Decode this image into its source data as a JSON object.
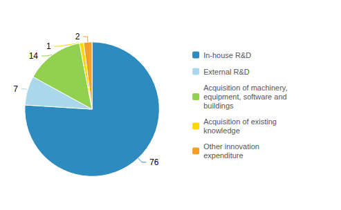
{
  "chart_data": {
    "type": "pie",
    "categories": [
      "In-house R&D",
      "External R&D",
      "Acquisition of machinery,\nequipment, software and\nbuildings",
      "Acquisition of existing\nknowledge",
      "Other innovation\nexpenditure"
    ],
    "values": [
      76,
      7,
      14,
      1,
      2
    ],
    "colors": [
      "#2e8bbf",
      "#a8d8ea",
      "#92d050",
      "#ffd700",
      "#f4a025"
    ],
    "data_labels": true,
    "legend": "right"
  }
}
